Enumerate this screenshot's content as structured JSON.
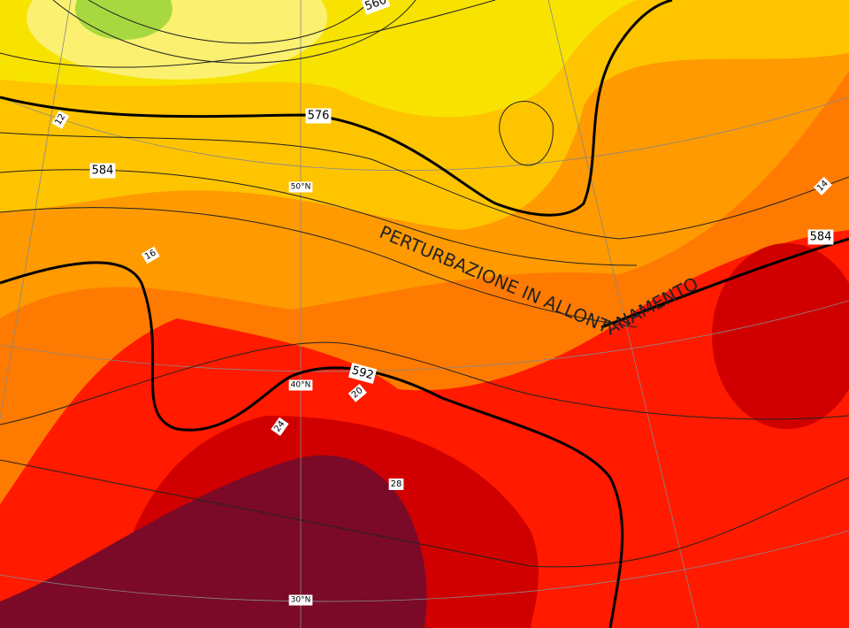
{
  "contour_labels": [
    "576",
    "584",
    "592",
    "584",
    "560"
  ],
  "temperature_labels": [
    "12",
    "16",
    "24",
    "20",
    "28",
    "14"
  ],
  "latitude_labels": [
    "50°N",
    "40°N",
    "30°N"
  ],
  "annotation": "PERTURBAZIONE IN ALLONTANAMENTO"
}
